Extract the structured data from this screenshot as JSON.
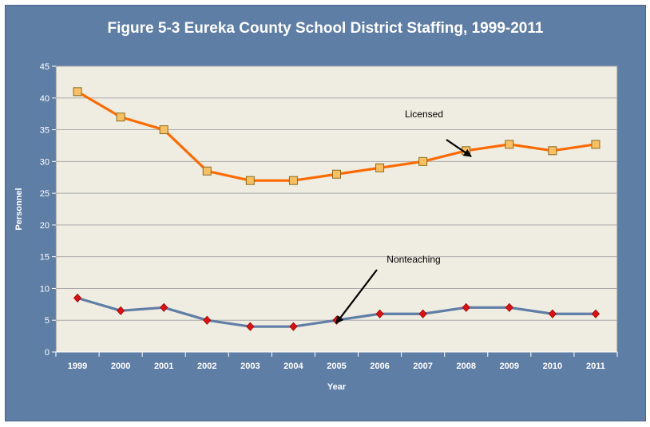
{
  "chart_data": {
    "type": "line",
    "title": "Figure 5-3  Eureka County School District Staffing, 1999-2011",
    "xlabel": "Year",
    "ylabel": "Personnel",
    "categories": [
      "1999",
      "2000",
      "2001",
      "2002",
      "2003",
      "2004",
      "2005",
      "2006",
      "2007",
      "2008",
      "2009",
      "2010",
      "2011"
    ],
    "ylim": [
      0,
      45
    ],
    "yticks": [
      0,
      5,
      10,
      15,
      20,
      25,
      30,
      35,
      40,
      45
    ],
    "grid": true,
    "legend": "none",
    "series": [
      {
        "name": "Licensed",
        "values": [
          41,
          37,
          35,
          28.5,
          27,
          27,
          28,
          29,
          30,
          31.7,
          32.7,
          31.7,
          32.7
        ],
        "color": "#ff6a00",
        "marker_color": "#f8c060",
        "marker": "square"
      },
      {
        "name": "Nonteaching",
        "values": [
          8.5,
          6.5,
          7,
          5,
          4,
          4,
          5,
          6,
          6,
          7,
          7,
          6,
          6
        ],
        "color": "#5f7ea6",
        "marker_color": "#e01010",
        "marker": "diamond"
      }
    ],
    "annotations": [
      {
        "text": "Licensed",
        "series": 0,
        "arrow_to_index": 9
      },
      {
        "text": "Nonteaching",
        "series": 1,
        "arrow_to_index": 6
      }
    ],
    "colors": {
      "frame": "#5f7ea6",
      "plot_background": "#efede2",
      "gridline": "#a8a8a8"
    }
  }
}
